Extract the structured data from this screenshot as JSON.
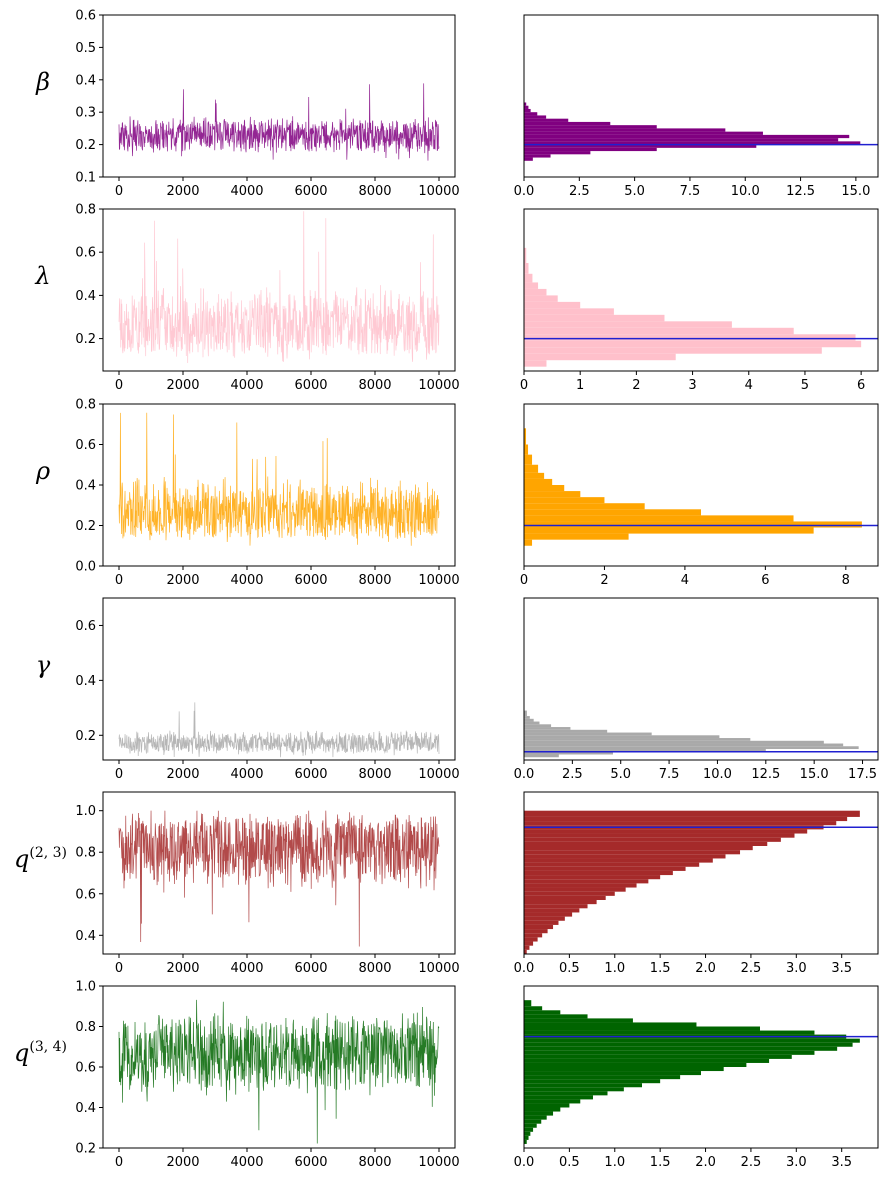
{
  "chart_data": [
    {
      "type": "line",
      "panel": "trace",
      "param_label": {
        "symbol": "β",
        "sup": ""
      },
      "color": "#800080",
      "xlim": [
        0,
        10000
      ],
      "ylim": [
        0.1,
        0.6
      ],
      "xticks": [
        0,
        2000,
        4000,
        6000,
        8000,
        10000
      ],
      "yticks": [
        0.1,
        0.2,
        0.3,
        0.4,
        0.5,
        0.6
      ],
      "n_iterations": 10000,
      "trace_summary": {
        "center": 0.22,
        "typical_min": 0.17,
        "typical_max": 0.29,
        "min": 0.15,
        "max": 0.39
      }
    },
    {
      "type": "bar",
      "panel": "histogram",
      "orientation": "horizontal",
      "param_label": {
        "symbol": "β",
        "sup": ""
      },
      "color": "#800080",
      "true_value": 0.2,
      "xlim": [
        0,
        16
      ],
      "xticks": [
        0.0,
        2.5,
        5.0,
        7.5,
        10.0,
        12.5,
        15.0
      ],
      "xtick_labels": [
        "0.0",
        "2.5",
        "5.0",
        "7.5",
        "10.0",
        "12.5",
        "15.0"
      ],
      "bins": [
        {
          "y0": 0.15,
          "y1": 0.16,
          "value": 0.4
        },
        {
          "y0": 0.16,
          "y1": 0.17,
          "value": 1.2
        },
        {
          "y0": 0.17,
          "y1": 0.18,
          "value": 3.0
        },
        {
          "y0": 0.18,
          "y1": 0.19,
          "value": 6.0
        },
        {
          "y0": 0.19,
          "y1": 0.2,
          "value": 10.5
        },
        {
          "y0": 0.2,
          "y1": 0.21,
          "value": 15.2
        },
        {
          "y0": 0.21,
          "y1": 0.22,
          "value": 14.2
        },
        {
          "y0": 0.22,
          "y1": 0.23,
          "value": 14.7
        },
        {
          "y0": 0.23,
          "y1": 0.24,
          "value": 10.8
        },
        {
          "y0": 0.24,
          "y1": 0.25,
          "value": 9.1
        },
        {
          "y0": 0.25,
          "y1": 0.26,
          "value": 6.0
        },
        {
          "y0": 0.26,
          "y1": 0.27,
          "value": 3.9
        },
        {
          "y0": 0.27,
          "y1": 0.28,
          "value": 2.0
        },
        {
          "y0": 0.28,
          "y1": 0.29,
          "value": 1.0
        },
        {
          "y0": 0.29,
          "y1": 0.3,
          "value": 0.6
        },
        {
          "y0": 0.3,
          "y1": 0.31,
          "value": 0.3
        },
        {
          "y0": 0.31,
          "y1": 0.32,
          "value": 0.2
        },
        {
          "y0": 0.32,
          "y1": 0.33,
          "value": 0.1
        }
      ]
    },
    {
      "type": "line",
      "panel": "trace",
      "param_label": {
        "symbol": "λ",
        "sup": ""
      },
      "color": "#ffc0cb",
      "xlim": [
        0,
        10000
      ],
      "ylim": [
        0.05,
        0.8
      ],
      "xticks": [
        0,
        2000,
        4000,
        6000,
        8000,
        10000
      ],
      "yticks": [
        0.2,
        0.4,
        0.6,
        0.8
      ],
      "n_iterations": 10000,
      "trace_summary": {
        "center": 0.2,
        "typical_min": 0.1,
        "typical_max": 0.45,
        "min": 0.08,
        "max": 0.8
      }
    },
    {
      "type": "bar",
      "panel": "histogram",
      "orientation": "horizontal",
      "param_label": {
        "symbol": "λ",
        "sup": ""
      },
      "color": "#ffc0cb",
      "true_value": 0.2,
      "xlim": [
        0,
        6.3
      ],
      "xticks": [
        0,
        1,
        2,
        3,
        4,
        5,
        6
      ],
      "xtick_labels": [
        "0",
        "1",
        "2",
        "3",
        "4",
        "5",
        "6"
      ],
      "bins": [
        {
          "y0": 0.07,
          "y1": 0.1,
          "value": 0.4
        },
        {
          "y0": 0.1,
          "y1": 0.13,
          "value": 2.7
        },
        {
          "y0": 0.13,
          "y1": 0.16,
          "value": 5.3
        },
        {
          "y0": 0.16,
          "y1": 0.19,
          "value": 6.0
        },
        {
          "y0": 0.19,
          "y1": 0.22,
          "value": 5.9
        },
        {
          "y0": 0.22,
          "y1": 0.25,
          "value": 4.8
        },
        {
          "y0": 0.25,
          "y1": 0.28,
          "value": 3.7
        },
        {
          "y0": 0.28,
          "y1": 0.31,
          "value": 2.5
        },
        {
          "y0": 0.31,
          "y1": 0.34,
          "value": 1.6
        },
        {
          "y0": 0.34,
          "y1": 0.37,
          "value": 1.0
        },
        {
          "y0": 0.37,
          "y1": 0.4,
          "value": 0.6
        },
        {
          "y0": 0.4,
          "y1": 0.43,
          "value": 0.4
        },
        {
          "y0": 0.43,
          "y1": 0.46,
          "value": 0.25
        },
        {
          "y0": 0.46,
          "y1": 0.5,
          "value": 0.15
        },
        {
          "y0": 0.5,
          "y1": 0.55,
          "value": 0.08
        },
        {
          "y0": 0.55,
          "y1": 0.62,
          "value": 0.04
        }
      ]
    },
    {
      "type": "line",
      "panel": "trace",
      "param_label": {
        "symbol": "ρ",
        "sup": ""
      },
      "color": "#ffa500",
      "xlim": [
        0,
        10000
      ],
      "ylim": [
        0.0,
        0.8
      ],
      "xticks": [
        0,
        2000,
        4000,
        6000,
        8000,
        10000
      ],
      "yticks": [
        0.0,
        0.2,
        0.4,
        0.6,
        0.8
      ],
      "n_iterations": 10000,
      "trace_summary": {
        "center": 0.2,
        "typical_min": 0.12,
        "typical_max": 0.45,
        "min": 0.1,
        "max": 0.8
      }
    },
    {
      "type": "bar",
      "panel": "histogram",
      "orientation": "horizontal",
      "param_label": {
        "symbol": "ρ",
        "sup": ""
      },
      "color": "#ffa500",
      "true_value": 0.2,
      "xlim": [
        0,
        8.8
      ],
      "xticks": [
        0,
        2,
        4,
        6,
        8
      ],
      "xtick_labels": [
        "0",
        "2",
        "4",
        "6",
        "8"
      ],
      "bins": [
        {
          "y0": 0.1,
          "y1": 0.13,
          "value": 0.2
        },
        {
          "y0": 0.13,
          "y1": 0.16,
          "value": 2.6
        },
        {
          "y0": 0.16,
          "y1": 0.19,
          "value": 7.2
        },
        {
          "y0": 0.19,
          "y1": 0.22,
          "value": 8.4
        },
        {
          "y0": 0.22,
          "y1": 0.25,
          "value": 6.7
        },
        {
          "y0": 0.25,
          "y1": 0.28,
          "value": 4.4
        },
        {
          "y0": 0.28,
          "y1": 0.31,
          "value": 3.0
        },
        {
          "y0": 0.31,
          "y1": 0.34,
          "value": 2.0
        },
        {
          "y0": 0.34,
          "y1": 0.37,
          "value": 1.4
        },
        {
          "y0": 0.37,
          "y1": 0.4,
          "value": 1.0
        },
        {
          "y0": 0.4,
          "y1": 0.43,
          "value": 0.7
        },
        {
          "y0": 0.43,
          "y1": 0.46,
          "value": 0.5
        },
        {
          "y0": 0.46,
          "y1": 0.5,
          "value": 0.35
        },
        {
          "y0": 0.5,
          "y1": 0.55,
          "value": 0.2
        },
        {
          "y0": 0.55,
          "y1": 0.6,
          "value": 0.1
        },
        {
          "y0": 0.6,
          "y1": 0.68,
          "value": 0.05
        }
      ]
    },
    {
      "type": "line",
      "panel": "trace",
      "param_label": {
        "symbol": "γ",
        "sup": ""
      },
      "color": "#a9a9a9",
      "xlim": [
        0,
        10000
      ],
      "ylim": [
        0.11,
        0.7
      ],
      "xticks": [
        0,
        2000,
        4000,
        6000,
        8000,
        10000
      ],
      "yticks": [
        0.2,
        0.4,
        0.6
      ],
      "n_iterations": 10000,
      "trace_summary": {
        "center": 0.165,
        "typical_min": 0.13,
        "typical_max": 0.22,
        "min": 0.12,
        "max": 0.32
      }
    },
    {
      "type": "bar",
      "panel": "histogram",
      "orientation": "horizontal",
      "param_label": {
        "symbol": "γ",
        "sup": ""
      },
      "color": "#a9a9a9",
      "true_value": 0.14,
      "xlim": [
        0,
        18.3
      ],
      "xticks": [
        0.0,
        2.5,
        5.0,
        7.5,
        10.0,
        12.5,
        15.0,
        17.5
      ],
      "xtick_labels": [
        "0.0",
        "2.5",
        "5.0",
        "7.5",
        "10.0",
        "12.5",
        "15.0",
        "17.5"
      ],
      "bins": [
        {
          "y0": 0.12,
          "y1": 0.13,
          "value": 1.8
        },
        {
          "y0": 0.13,
          "y1": 0.14,
          "value": 4.6
        },
        {
          "y0": 0.14,
          "y1": 0.15,
          "value": 12.5
        },
        {
          "y0": 0.15,
          "y1": 0.16,
          "value": 17.3
        },
        {
          "y0": 0.16,
          "y1": 0.17,
          "value": 16.5
        },
        {
          "y0": 0.17,
          "y1": 0.18,
          "value": 15.5
        },
        {
          "y0": 0.18,
          "y1": 0.19,
          "value": 11.7
        },
        {
          "y0": 0.19,
          "y1": 0.2,
          "value": 10.1
        },
        {
          "y0": 0.2,
          "y1": 0.21,
          "value": 6.6
        },
        {
          "y0": 0.21,
          "y1": 0.22,
          "value": 4.3
        },
        {
          "y0": 0.22,
          "y1": 0.23,
          "value": 2.4
        },
        {
          "y0": 0.23,
          "y1": 0.24,
          "value": 1.4
        },
        {
          "y0": 0.24,
          "y1": 0.25,
          "value": 0.8
        },
        {
          "y0": 0.25,
          "y1": 0.26,
          "value": 0.5
        },
        {
          "y0": 0.26,
          "y1": 0.27,
          "value": 0.3
        },
        {
          "y0": 0.27,
          "y1": 0.29,
          "value": 0.15
        }
      ]
    },
    {
      "type": "line",
      "panel": "trace",
      "param_label": {
        "symbol": "q",
        "sup": "(2, 3)"
      },
      "color": "#a52a2a",
      "xlim": [
        0,
        10000
      ],
      "ylim": [
        0.31,
        1.09
      ],
      "xticks": [
        0,
        2000,
        4000,
        6000,
        8000,
        10000
      ],
      "yticks": [
        0.4,
        0.6,
        0.8,
        1.0
      ],
      "n_iterations": 10000,
      "trace_summary": {
        "center": 0.87,
        "typical_min": 0.6,
        "typical_max": 1.0,
        "min": 0.32,
        "max": 1.0
      }
    },
    {
      "type": "bar",
      "panel": "histogram",
      "orientation": "horizontal",
      "param_label": {
        "symbol": "q",
        "sup": "(2, 3)"
      },
      "color": "#a52a2a",
      "true_value": 0.92,
      "xlim": [
        0,
        3.9
      ],
      "xticks": [
        0.0,
        0.5,
        1.0,
        1.5,
        2.0,
        2.5,
        3.0,
        3.5
      ],
      "xtick_labels": [
        "0.0",
        "0.5",
        "1.0",
        "1.5",
        "2.0",
        "2.5",
        "3.0",
        "3.5"
      ],
      "bins": [
        {
          "y0": 0.31,
          "y1": 0.33,
          "value": 0.03
        },
        {
          "y0": 0.33,
          "y1": 0.35,
          "value": 0.06
        },
        {
          "y0": 0.35,
          "y1": 0.37,
          "value": 0.1
        },
        {
          "y0": 0.37,
          "y1": 0.39,
          "value": 0.15
        },
        {
          "y0": 0.39,
          "y1": 0.41,
          "value": 0.2
        },
        {
          "y0": 0.41,
          "y1": 0.43,
          "value": 0.26
        },
        {
          "y0": 0.43,
          "y1": 0.45,
          "value": 0.32
        },
        {
          "y0": 0.45,
          "y1": 0.47,
          "value": 0.38
        },
        {
          "y0": 0.47,
          "y1": 0.49,
          "value": 0.45
        },
        {
          "y0": 0.49,
          "y1": 0.51,
          "value": 0.53
        },
        {
          "y0": 0.51,
          "y1": 0.53,
          "value": 0.61
        },
        {
          "y0": 0.53,
          "y1": 0.55,
          "value": 0.7
        },
        {
          "y0": 0.55,
          "y1": 0.57,
          "value": 0.8
        },
        {
          "y0": 0.57,
          "y1": 0.59,
          "value": 0.9
        },
        {
          "y0": 0.59,
          "y1": 0.61,
          "value": 1.0
        },
        {
          "y0": 0.61,
          "y1": 0.63,
          "value": 1.12
        },
        {
          "y0": 0.63,
          "y1": 0.65,
          "value": 1.24
        },
        {
          "y0": 0.65,
          "y1": 0.67,
          "value": 1.37
        },
        {
          "y0": 0.67,
          "y1": 0.69,
          "value": 1.5
        },
        {
          "y0": 0.69,
          "y1": 0.71,
          "value": 1.64
        },
        {
          "y0": 0.71,
          "y1": 0.73,
          "value": 1.78
        },
        {
          "y0": 0.73,
          "y1": 0.75,
          "value": 1.93
        },
        {
          "y0": 0.75,
          "y1": 0.77,
          "value": 2.08
        },
        {
          "y0": 0.77,
          "y1": 0.79,
          "value": 2.22
        },
        {
          "y0": 0.79,
          "y1": 0.81,
          "value": 2.38
        },
        {
          "y0": 0.81,
          "y1": 0.83,
          "value": 2.52
        },
        {
          "y0": 0.83,
          "y1": 0.85,
          "value": 2.68
        },
        {
          "y0": 0.85,
          "y1": 0.87,
          "value": 2.83
        },
        {
          "y0": 0.87,
          "y1": 0.89,
          "value": 2.98
        },
        {
          "y0": 0.89,
          "y1": 0.91,
          "value": 3.12
        },
        {
          "y0": 0.91,
          "y1": 0.93,
          "value": 3.3
        },
        {
          "y0": 0.93,
          "y1": 0.95,
          "value": 3.44
        },
        {
          "y0": 0.95,
          "y1": 0.97,
          "value": 3.56
        },
        {
          "y0": 0.97,
          "y1": 1.0,
          "value": 3.7
        }
      ]
    },
    {
      "type": "line",
      "panel": "trace",
      "param_label": {
        "symbol": "q",
        "sup": "(3, 4)"
      },
      "color": "#006400",
      "xlim": [
        0,
        10000
      ],
      "ylim": [
        0.2,
        1.0
      ],
      "xticks": [
        0,
        2000,
        4000,
        6000,
        8000,
        10000
      ],
      "yticks": [
        0.2,
        0.4,
        0.6,
        0.8,
        1.0
      ],
      "n_iterations": 10000,
      "trace_summary": {
        "center": 0.7,
        "typical_min": 0.45,
        "typical_max": 0.88,
        "min": 0.22,
        "max": 0.95
      }
    },
    {
      "type": "bar",
      "panel": "histogram",
      "orientation": "horizontal",
      "param_label": {
        "symbol": "q",
        "sup": "(3, 4)"
      },
      "color": "#006400",
      "true_value": 0.75,
      "xlim": [
        0,
        3.9
      ],
      "xticks": [
        0.0,
        0.5,
        1.0,
        1.5,
        2.0,
        2.5,
        3.0,
        3.5
      ],
      "xtick_labels": [
        "0.0",
        "0.5",
        "1.0",
        "1.5",
        "2.0",
        "2.5",
        "3.0",
        "3.5"
      ],
      "bins": [
        {
          "y0": 0.22,
          "y1": 0.24,
          "value": 0.03
        },
        {
          "y0": 0.24,
          "y1": 0.26,
          "value": 0.05
        },
        {
          "y0": 0.26,
          "y1": 0.28,
          "value": 0.07
        },
        {
          "y0": 0.28,
          "y1": 0.3,
          "value": 0.1
        },
        {
          "y0": 0.3,
          "y1": 0.32,
          "value": 0.14
        },
        {
          "y0": 0.32,
          "y1": 0.34,
          "value": 0.19
        },
        {
          "y0": 0.34,
          "y1": 0.36,
          "value": 0.25
        },
        {
          "y0": 0.36,
          "y1": 0.38,
          "value": 0.32
        },
        {
          "y0": 0.38,
          "y1": 0.4,
          "value": 0.4
        },
        {
          "y0": 0.4,
          "y1": 0.42,
          "value": 0.5
        },
        {
          "y0": 0.42,
          "y1": 0.44,
          "value": 0.62
        },
        {
          "y0": 0.44,
          "y1": 0.46,
          "value": 0.76
        },
        {
          "y0": 0.46,
          "y1": 0.48,
          "value": 0.92
        },
        {
          "y0": 0.48,
          "y1": 0.5,
          "value": 1.1
        },
        {
          "y0": 0.5,
          "y1": 0.52,
          "value": 1.3
        },
        {
          "y0": 0.52,
          "y1": 0.54,
          "value": 1.5
        },
        {
          "y0": 0.54,
          "y1": 0.56,
          "value": 1.72
        },
        {
          "y0": 0.56,
          "y1": 0.58,
          "value": 1.95
        },
        {
          "y0": 0.58,
          "y1": 0.6,
          "value": 2.2
        },
        {
          "y0": 0.6,
          "y1": 0.62,
          "value": 2.45
        },
        {
          "y0": 0.62,
          "y1": 0.64,
          "value": 2.7
        },
        {
          "y0": 0.64,
          "y1": 0.66,
          "value": 2.95
        },
        {
          "y0": 0.66,
          "y1": 0.68,
          "value": 3.2
        },
        {
          "y0": 0.68,
          "y1": 0.7,
          "value": 3.45
        },
        {
          "y0": 0.7,
          "y1": 0.72,
          "value": 3.62
        },
        {
          "y0": 0.72,
          "y1": 0.74,
          "value": 3.7
        },
        {
          "y0": 0.74,
          "y1": 0.76,
          "value": 3.55
        },
        {
          "y0": 0.76,
          "y1": 0.78,
          "value": 3.2
        },
        {
          "y0": 0.78,
          "y1": 0.8,
          "value": 2.6
        },
        {
          "y0": 0.8,
          "y1": 0.82,
          "value": 1.9
        },
        {
          "y0": 0.82,
          "y1": 0.84,
          "value": 1.2
        },
        {
          "y0": 0.84,
          "y1": 0.86,
          "value": 0.7
        },
        {
          "y0": 0.86,
          "y1": 0.88,
          "value": 0.4
        },
        {
          "y0": 0.88,
          "y1": 0.9,
          "value": 0.2
        },
        {
          "y0": 0.9,
          "y1": 0.93,
          "value": 0.08
        }
      ]
    }
  ]
}
